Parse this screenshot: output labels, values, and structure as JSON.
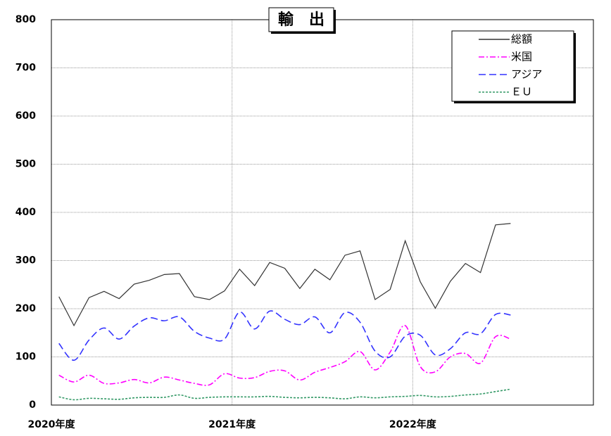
{
  "chart_data": {
    "type": "line",
    "title": "輸　出",
    "categories": [
      "2020年度",
      null,
      null,
      null,
      null,
      null,
      null,
      null,
      null,
      null,
      null,
      null,
      "2021年度",
      null,
      null,
      null,
      null,
      null,
      null,
      null,
      null,
      null,
      null,
      null,
      "2022年度",
      null,
      null,
      null,
      null,
      null,
      null,
      null,
      null,
      null,
      null,
      null
    ],
    "series": [
      {
        "name": "総額",
        "color": "#333333",
        "dash": "",
        "values": [
          225,
          165,
          223,
          236,
          221,
          251,
          259,
          271,
          273,
          225,
          219,
          237,
          282,
          248,
          296,
          284,
          242,
          282,
          260,
          311,
          320,
          219,
          240,
          341,
          256,
          201,
          257,
          294,
          275,
          374,
          377,
          null,
          null,
          null,
          null,
          null
        ]
      },
      {
        "name": "米国",
        "color": "#ff00ff",
        "dash": "8 3 2 3",
        "values": [
          62,
          48,
          62,
          45,
          46,
          53,
          46,
          58,
          52,
          45,
          42,
          65,
          56,
          57,
          70,
          71,
          52,
          68,
          78,
          90,
          111,
          73,
          110,
          165,
          80,
          69,
          100,
          107,
          87,
          142,
          137,
          null,
          null,
          null,
          null,
          null
        ]
      },
      {
        "name": "アジア",
        "color": "#3333ff",
        "dash": "10 5",
        "values": [
          128,
          93,
          135,
          160,
          137,
          164,
          181,
          175,
          183,
          153,
          139,
          137,
          193,
          158,
          195,
          178,
          167,
          183,
          150,
          192,
          172,
          112,
          100,
          143,
          145,
          104,
          117,
          150,
          148,
          188,
          187,
          null,
          null,
          null,
          null,
          null
        ]
      },
      {
        "name": "ＥＵ",
        "color": "#339966",
        "dash": "3 2",
        "values": [
          17,
          11,
          14,
          13,
          12,
          15,
          16,
          16,
          21,
          14,
          16,
          17,
          17,
          17,
          18,
          16,
          15,
          16,
          15,
          13,
          17,
          15,
          17,
          18,
          20,
          17,
          18,
          21,
          23,
          28,
          33,
          null,
          null,
          null,
          null,
          null
        ]
      }
    ],
    "ylim": [
      0,
      800
    ],
    "yticks": [
      0,
      100,
      200,
      300,
      400,
      500,
      600,
      700,
      800
    ],
    "grid": true,
    "legend": "top-right"
  }
}
